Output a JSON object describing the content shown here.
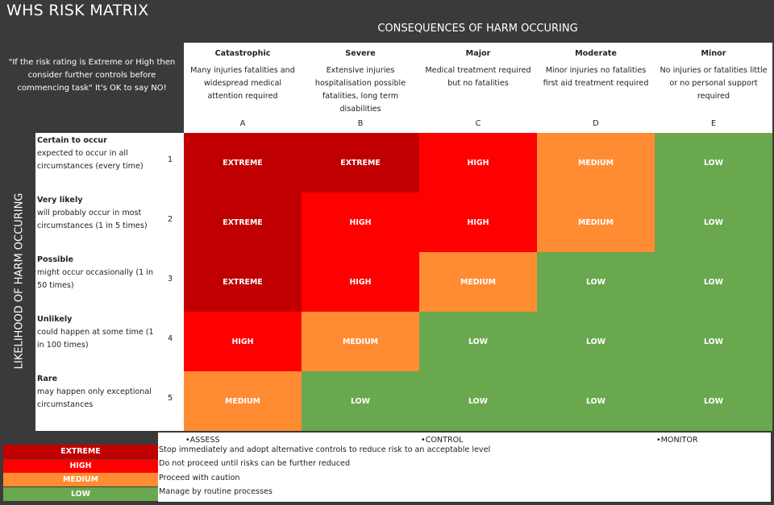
{
  "title": "WHS RISK MATRIX",
  "consequences_title": "CONSEQUENCES OF HARM OCCURING",
  "likelihood_title": "LIKELIHOOD OF HARM OCCURING",
  "note": "\"If the risk rating is Extreme or High then consider further controls before commencing task\" It's OK to say NO!",
  "colors": {
    "extreme": "#c00000",
    "high": "#ff0000",
    "medium": "#ff8c33",
    "low": "#6aa84f"
  },
  "consequences": [
    {
      "name": "Catastrophic",
      "desc": "Many injuries fatalities and widespread medical attention required",
      "letter": "A"
    },
    {
      "name": "Severe",
      "desc": "Extensive injuries hospitalisation possible fatalities, long term disabilities",
      "letter": "B"
    },
    {
      "name": "Major",
      "desc": "Medical treatment required but no fatalities",
      "letter": "C"
    },
    {
      "name": "Moderate",
      "desc": "Minor injuries no fatalities first aid treatment required",
      "letter": "D"
    },
    {
      "name": "Minor",
      "desc": "No injuries or fatalities little or no personal support required",
      "letter": "E"
    }
  ],
  "likelihoods": [
    {
      "name": "Certain to occur",
      "desc": "expected to occur in all circumstances (every time)",
      "num": "1"
    },
    {
      "name": "Very likely",
      "desc": "will probably occur in most circumstances (1 in 5 times)",
      "num": "2"
    },
    {
      "name": "Possible",
      "desc": "might occur occasionally (1 in 50 times)",
      "num": "3"
    },
    {
      "name": "Unlikely",
      "desc": "could happen at some time (1 in 100 times)",
      "num": "4"
    },
    {
      "name": "Rare",
      "desc": "may happen only exceptional circumstances",
      "num": "5"
    }
  ],
  "matrix": [
    [
      "EXTREME",
      "EXTREME",
      "HIGH",
      "MEDIUM",
      "LOW"
    ],
    [
      "EXTREME",
      "HIGH",
      "HIGH",
      "MEDIUM",
      "LOW"
    ],
    [
      "EXTREME",
      "HIGH",
      "MEDIUM",
      "LOW",
      "LOW"
    ],
    [
      "HIGH",
      "MEDIUM",
      "LOW",
      "LOW",
      "LOW"
    ],
    [
      "MEDIUM",
      "LOW",
      "LOW",
      "LOW",
      "LOW"
    ]
  ],
  "actions": [
    "•ASSESS",
    "•CONTROL",
    "•MONITOR"
  ],
  "legend": [
    {
      "level": "EXTREME",
      "text": "Stop immediately and adopt alternative controls to reduce risk to an acceptable level"
    },
    {
      "level": "HIGH",
      "text": "Do not proceed until risks can be further reduced"
    },
    {
      "level": "MEDIUM",
      "text": "Proceed with caution"
    },
    {
      "level": "LOW",
      "text": "Manage by routine processes"
    }
  ]
}
